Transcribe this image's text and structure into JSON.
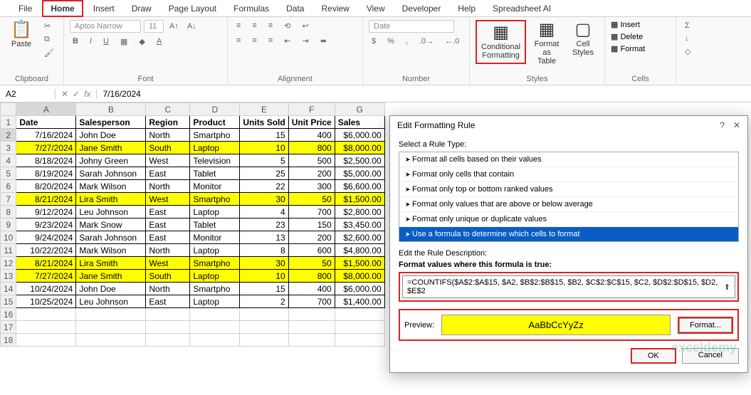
{
  "tabs": [
    "File",
    "Home",
    "Insert",
    "Draw",
    "Page Layout",
    "Formulas",
    "Data",
    "Review",
    "View",
    "Developer",
    "Help",
    "Spreadsheet AI"
  ],
  "activeTab": "Home",
  "clipboard": {
    "paste": "Paste",
    "label": "Clipboard"
  },
  "font": {
    "face": "Aptos Narrow",
    "size": "11",
    "label": "Font"
  },
  "alignment": {
    "label": "Alignment"
  },
  "number": {
    "format": "Date",
    "label": "Number"
  },
  "styles": {
    "cf": "Conditional Formatting",
    "fat": "Format as Table",
    "cs": "Cell Styles",
    "label": "Styles"
  },
  "cells": {
    "insert": "Insert",
    "delete": "Delete",
    "format": "Format",
    "label": "Cells"
  },
  "nameBox": "A2",
  "formulaValue": "7/16/2024",
  "colHeaders": [
    "A",
    "B",
    "C",
    "D",
    "E",
    "F",
    "G"
  ],
  "headerRow": [
    "Date",
    "Salesperson",
    "Region",
    "Product",
    "Units Sold",
    "Unit Price",
    "Sales"
  ],
  "rows": [
    {
      "n": 2,
      "hl": false,
      "c": [
        "7/16/2024",
        "John Doe",
        "North",
        "Smartpho",
        "15",
        "400",
        "$6,000.00"
      ]
    },
    {
      "n": 3,
      "hl": true,
      "c": [
        "7/27/2024",
        "Jane Smith",
        "South",
        "Laptop",
        "10",
        "800",
        "$8,000.00"
      ]
    },
    {
      "n": 4,
      "hl": false,
      "c": [
        "8/18/2024",
        "Johny Green",
        "West",
        "Television",
        "5",
        "500",
        "$2,500.00"
      ]
    },
    {
      "n": 5,
      "hl": false,
      "c": [
        "8/19/2024",
        "Sarah Johnson",
        "East",
        "Tablet",
        "25",
        "200",
        "$5,000.00"
      ]
    },
    {
      "n": 6,
      "hl": false,
      "c": [
        "8/20/2024",
        "Mark Wilson",
        "North",
        "Monitor",
        "22",
        "300",
        "$6,600.00"
      ]
    },
    {
      "n": 7,
      "hl": true,
      "c": [
        "8/21/2024",
        "Lira Smith",
        "West",
        "Smartpho",
        "30",
        "50",
        "$1,500.00"
      ]
    },
    {
      "n": 8,
      "hl": false,
      "c": [
        "9/12/2024",
        "Leu Johnson",
        "East",
        "Laptop",
        "4",
        "700",
        "$2,800.00"
      ]
    },
    {
      "n": 9,
      "hl": false,
      "c": [
        "9/23/2024",
        "Mark Snow",
        "East",
        "Tablet",
        "23",
        "150",
        "$3,450.00"
      ]
    },
    {
      "n": 10,
      "hl": false,
      "c": [
        "9/24/2024",
        "Sarah Johnson",
        "East",
        "Monitor",
        "13",
        "200",
        "$2,600.00"
      ]
    },
    {
      "n": 11,
      "hl": false,
      "c": [
        "10/22/2024",
        "Mark Wilson",
        "North",
        "Laptop",
        "8",
        "600",
        "$4,800.00"
      ]
    },
    {
      "n": 12,
      "hl": true,
      "c": [
        "8/21/2024",
        "Lira Smith",
        "West",
        "Smartpho",
        "30",
        "50",
        "$1,500.00"
      ]
    },
    {
      "n": 13,
      "hl": true,
      "c": [
        "7/27/2024",
        "Jane Smith",
        "South",
        "Laptop",
        "10",
        "800",
        "$8,000.00"
      ]
    },
    {
      "n": 14,
      "hl": false,
      "c": [
        "10/24/2024",
        "John Doe",
        "North",
        "Smartpho",
        "15",
        "400",
        "$6,000.00"
      ]
    },
    {
      "n": 15,
      "hl": false,
      "c": [
        "10/25/2024",
        "Leu Johnson",
        "East",
        "Laptop",
        "2",
        "700",
        "$1,400.00"
      ]
    }
  ],
  "emptyRows": [
    16,
    17,
    18
  ],
  "dialog": {
    "title": "Edit Formatting Rule",
    "selectLabel": "Select a Rule Type:",
    "rules": [
      "Format all cells based on their values",
      "Format only cells that contain",
      "Format only top or bottom ranked values",
      "Format only values that are above or below average",
      "Format only unique or duplicate values",
      "Use a formula to determine which cells to format"
    ],
    "selectedRuleIndex": 5,
    "editLabel": "Edit the Rule Description:",
    "formulaLabel": "Format values where this formula is true:",
    "formula": "=COUNTIFS($A$2:$A$15, $A2, $B$2:$B$15, $B2, $C$2:$C$15, $C2, $D$2:$D$15, $D2, $E$2",
    "previewLabel": "Preview:",
    "previewText": "AaBbCcYyZz",
    "formatBtn": "Format...",
    "ok": "OK",
    "cancel": "Cancel"
  },
  "watermark": "exceldemy"
}
